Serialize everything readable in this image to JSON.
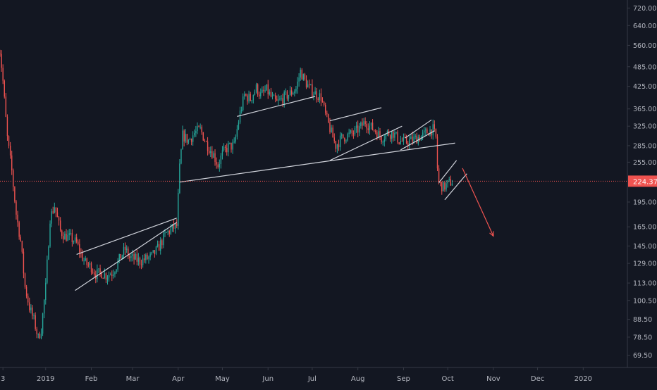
{
  "chart_data": {
    "type": "candlestick",
    "title": "",
    "xlabel": "",
    "ylabel": "",
    "y_scale": "log",
    "ylim": [
      64,
      760
    ],
    "xlim": [
      "2018-12-01",
      "2020-01-31"
    ],
    "grid": false,
    "legend": "none",
    "colors": {
      "background": "#131722",
      "up": "#26a69a",
      "down": "#ef5350",
      "axis_text": "#b2b5be",
      "trendline": "#d1d4dc",
      "forecast_arrow": "#ef5350",
      "current_price_line": "#ef5350"
    },
    "y_ticks": [
      "720.00",
      "640.00",
      "560.00",
      "485.00",
      "425.00",
      "365.00",
      "325.00",
      "285.00",
      "255.00",
      "224.37",
      "195.00",
      "165.00",
      "145.00",
      "129.00",
      "113.00",
      "100.50",
      "88.50",
      "78.50",
      "69.50"
    ],
    "x_ticks": [
      {
        "label": "3",
        "date": "2018-12-03"
      },
      {
        "label": "2019",
        "date": "2019-01-01"
      },
      {
        "label": "Feb",
        "date": "2019-02-01"
      },
      {
        "label": "Mar",
        "date": "2019-03-01"
      },
      {
        "label": "Apr",
        "date": "2019-04-01"
      },
      {
        "label": "May",
        "date": "2019-05-01"
      },
      {
        "label": "Jun",
        "date": "2019-06-01"
      },
      {
        "label": "Jul",
        "date": "2019-07-01"
      },
      {
        "label": "Aug",
        "date": "2019-08-01"
      },
      {
        "label": "Sep",
        "date": "2019-09-01"
      },
      {
        "label": "Oct",
        "date": "2019-10-01"
      },
      {
        "label": "Nov",
        "date": "2019-11-01"
      },
      {
        "label": "Dec",
        "date": "2019-12-01"
      },
      {
        "label": "2020",
        "date": "2020-01-01"
      }
    ],
    "current_price": {
      "value": 224.37,
      "label": "224.37"
    },
    "price_path": [
      [
        "2018-11-29",
        560
      ],
      [
        "2018-12-01",
        540
      ],
      [
        "2018-12-03",
        440
      ],
      [
        "2018-12-06",
        300
      ],
      [
        "2018-12-09",
        240
      ],
      [
        "2018-12-12",
        180
      ],
      [
        "2018-12-15",
        150
      ],
      [
        "2018-12-18",
        110
      ],
      [
        "2018-12-21",
        96
      ],
      [
        "2018-12-24",
        88
      ],
      [
        "2018-12-27",
        78
      ],
      [
        "2018-12-29",
        83
      ],
      [
        "2019-01-01",
        110
      ],
      [
        "2019-01-04",
        175
      ],
      [
        "2019-01-07",
        190
      ],
      [
        "2019-01-11",
        160
      ],
      [
        "2019-01-14",
        155
      ],
      [
        "2019-01-18",
        153
      ],
      [
        "2019-01-22",
        148
      ],
      [
        "2019-01-25",
        137
      ],
      [
        "2019-01-28",
        129
      ],
      [
        "2019-02-01",
        126
      ],
      [
        "2019-02-04",
        120
      ],
      [
        "2019-02-08",
        121
      ],
      [
        "2019-02-11",
        119
      ],
      [
        "2019-02-15",
        121
      ],
      [
        "2019-02-18",
        127
      ],
      [
        "2019-02-21",
        135
      ],
      [
        "2019-02-24",
        142
      ],
      [
        "2019-02-27",
        134
      ],
      [
        "2019-03-02",
        133
      ],
      [
        "2019-03-06",
        131
      ],
      [
        "2019-03-10",
        133
      ],
      [
        "2019-03-14",
        135
      ],
      [
        "2019-03-18",
        142
      ],
      [
        "2019-03-21",
        150
      ],
      [
        "2019-03-24",
        158
      ],
      [
        "2019-03-28",
        163
      ],
      [
        "2019-03-31",
        166
      ],
      [
        "2019-04-02",
        245
      ],
      [
        "2019-04-04",
        305
      ],
      [
        "2019-04-08",
        295
      ],
      [
        "2019-04-12",
        310
      ],
      [
        "2019-04-16",
        318
      ],
      [
        "2019-04-20",
        290
      ],
      [
        "2019-04-25",
        268
      ],
      [
        "2019-04-28",
        250
      ],
      [
        "2019-05-01",
        270
      ],
      [
        "2019-05-05",
        283
      ],
      [
        "2019-05-09",
        285
      ],
      [
        "2019-05-13",
        355
      ],
      [
        "2019-05-16",
        400
      ],
      [
        "2019-05-20",
        390
      ],
      [
        "2019-05-24",
        420
      ],
      [
        "2019-05-27",
        400
      ],
      [
        "2019-05-31",
        415
      ],
      [
        "2019-06-04",
        390
      ],
      [
        "2019-06-07",
        380
      ],
      [
        "2019-06-12",
        395
      ],
      [
        "2019-06-16",
        405
      ],
      [
        "2019-06-20",
        418
      ],
      [
        "2019-06-23",
        470
      ],
      [
        "2019-06-26",
        440
      ],
      [
        "2019-06-29",
        420
      ],
      [
        "2019-07-03",
        405
      ],
      [
        "2019-07-07",
        395
      ],
      [
        "2019-07-10",
        350
      ],
      [
        "2019-07-14",
        310
      ],
      [
        "2019-07-17",
        285
      ],
      [
        "2019-07-21",
        300
      ],
      [
        "2019-07-25",
        305
      ],
      [
        "2019-07-29",
        310
      ],
      [
        "2019-08-02",
        320
      ],
      [
        "2019-08-06",
        335
      ],
      [
        "2019-08-09",
        325
      ],
      [
        "2019-08-13",
        315
      ],
      [
        "2019-08-17",
        300
      ],
      [
        "2019-08-21",
        310
      ],
      [
        "2019-08-25",
        310
      ],
      [
        "2019-08-29",
        295
      ],
      [
        "2019-09-02",
        292
      ],
      [
        "2019-09-06",
        295
      ],
      [
        "2019-09-10",
        300
      ],
      [
        "2019-09-14",
        305
      ],
      [
        "2019-09-18",
        315
      ],
      [
        "2019-09-21",
        318
      ],
      [
        "2019-09-23",
        300
      ],
      [
        "2019-09-24",
        245
      ],
      [
        "2019-09-25",
        222
      ],
      [
        "2019-09-28",
        215
      ],
      [
        "2019-10-01",
        220
      ],
      [
        "2019-10-04",
        224.37
      ]
    ],
    "drawings": {
      "trendlines": [
        [
          [
            "2019-01-21",
            107.5
          ],
          [
            "2019-03-31",
            170
          ]
        ],
        [
          [
            "2019-01-22",
            137
          ],
          [
            "2019-03-31",
            175
          ]
        ],
        [
          [
            "2019-04-02",
            223
          ],
          [
            "2019-10-06",
            290
          ]
        ],
        [
          [
            "2019-05-11",
            347
          ],
          [
            "2019-07-03",
            397
          ]
        ],
        [
          [
            "2019-07-13",
            337
          ],
          [
            "2019-08-17",
            368
          ]
        ],
        [
          [
            "2019-07-13",
            258
          ],
          [
            "2019-08-31",
            325
          ]
        ],
        [
          [
            "2019-08-30",
            277
          ],
          [
            "2019-09-22",
            315
          ]
        ],
        [
          [
            "2019-09-02",
            300
          ],
          [
            "2019-09-20",
            339
          ]
        ],
        [
          [
            "2019-09-25",
            222
          ],
          [
            "2019-10-07",
            258
          ]
        ],
        [
          [
            "2019-09-29",
            198
          ],
          [
            "2019-10-14",
            236
          ]
        ]
      ],
      "forecast_arrow": [
        [
          "2019-10-11",
          245
        ],
        [
          "2019-11-01",
          155
        ]
      ]
    }
  }
}
